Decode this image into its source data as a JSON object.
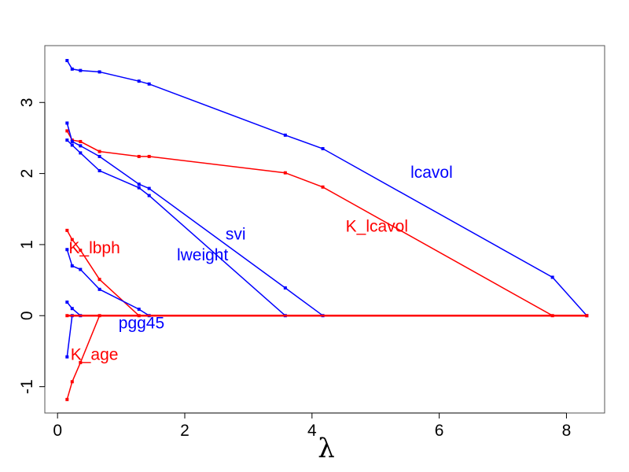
{
  "chart_data": {
    "type": "line",
    "title": "",
    "xlabel": "λ",
    "ylabel": "",
    "xlim": [
      -0.2,
      8.6
    ],
    "ylim": [
      -1.37,
      3.8
    ],
    "xticks": [
      "0",
      "2",
      "4",
      "6",
      "8"
    ],
    "yticks": [
      "-1",
      "0",
      "1",
      "2",
      "3"
    ],
    "grid": false,
    "legend": "none",
    "series": [
      {
        "name": "lcavol",
        "color": "#0000FF",
        "points": [
          [
            0.15,
            3.59
          ],
          [
            0.23,
            3.47
          ],
          [
            0.36,
            3.45
          ],
          [
            0.66,
            3.43
          ],
          [
            1.28,
            3.3
          ],
          [
            1.44,
            3.26
          ],
          [
            3.58,
            2.54
          ],
          [
            4.17,
            2.35
          ],
          [
            7.78,
            0.54
          ],
          [
            8.32,
            0.0
          ]
        ]
      },
      {
        "name": "K_lcavol",
        "color": "#FF0000",
        "points": [
          [
            0.15,
            2.6
          ],
          [
            0.23,
            2.47
          ],
          [
            0.36,
            2.45
          ],
          [
            0.66,
            2.31
          ],
          [
            1.28,
            2.24
          ],
          [
            1.44,
            2.24
          ],
          [
            3.58,
            2.01
          ],
          [
            4.17,
            1.81
          ],
          [
            7.78,
            0.0
          ]
        ]
      },
      {
        "name": "svi",
        "color": "#0000FF",
        "points": [
          [
            0.15,
            2.71
          ],
          [
            0.23,
            2.45
          ],
          [
            0.36,
            2.39
          ],
          [
            0.66,
            2.24
          ],
          [
            1.28,
            1.85
          ],
          [
            1.44,
            1.79
          ],
          [
            3.58,
            0.39
          ],
          [
            4.17,
            0.0
          ]
        ]
      },
      {
        "name": "lweight",
        "color": "#0000FF",
        "points": [
          [
            0.15,
            2.47
          ],
          [
            0.23,
            2.4
          ],
          [
            0.36,
            2.29
          ],
          [
            0.66,
            2.04
          ],
          [
            1.28,
            1.8
          ],
          [
            1.44,
            1.69
          ],
          [
            3.58,
            0.0
          ]
        ]
      },
      {
        "name": "K_lbph",
        "color": "#FF0000",
        "points": [
          [
            0.15,
            1.2
          ],
          [
            0.23,
            1.07
          ],
          [
            0.36,
            0.92
          ],
          [
            0.66,
            0.51
          ],
          [
            1.28,
            0.0
          ]
        ]
      },
      {
        "name": "",
        "color": "#0000FF",
        "points": [
          [
            0.15,
            0.93
          ],
          [
            0.23,
            0.7
          ],
          [
            0.36,
            0.65
          ],
          [
            0.66,
            0.37
          ],
          [
            1.28,
            0.09
          ],
          [
            1.44,
            0.0
          ]
        ]
      },
      {
        "name": "pgg45",
        "color": "#0000FF",
        "points": [
          [
            0.15,
            0.19
          ],
          [
            0.23,
            0.1
          ],
          [
            0.36,
            0.0
          ]
        ]
      },
      {
        "name": "",
        "color": "#0000FF",
        "points": [
          [
            0.15,
            -0.58
          ],
          [
            0.23,
            0.0
          ]
        ]
      },
      {
        "name": "K_age",
        "color": "#FF0000",
        "points": [
          [
            0.15,
            -1.18
          ],
          [
            0.23,
            -0.93
          ],
          [
            0.36,
            -0.66
          ],
          [
            0.66,
            0.0
          ]
        ]
      },
      {
        "name": "",
        "color": "#FF0000",
        "points": [
          [
            0.15,
            0.0
          ],
          [
            8.32,
            0.0
          ]
        ]
      }
    ],
    "labels": [
      {
        "text": "lcavol",
        "x": 5.88,
        "y": 1.94,
        "color": "#0000FF"
      },
      {
        "text": "K_lcavol",
        "x": 5.02,
        "y": 1.18,
        "color": "#FF0000"
      },
      {
        "text": "svi",
        "x": 2.8,
        "y": 1.07,
        "color": "#0000FF"
      },
      {
        "text": "lweight",
        "x": 2.28,
        "y": 0.78,
        "color": "#0000FF"
      },
      {
        "text": "K_lbph",
        "x": 0.58,
        "y": 0.88,
        "color": "#FF0000"
      },
      {
        "text": "pgg45",
        "x": 1.32,
        "y": -0.18,
        "color": "#0000FF"
      },
      {
        "text": "K_age",
        "x": 0.58,
        "y": -0.62,
        "color": "#FF0000"
      }
    ]
  }
}
